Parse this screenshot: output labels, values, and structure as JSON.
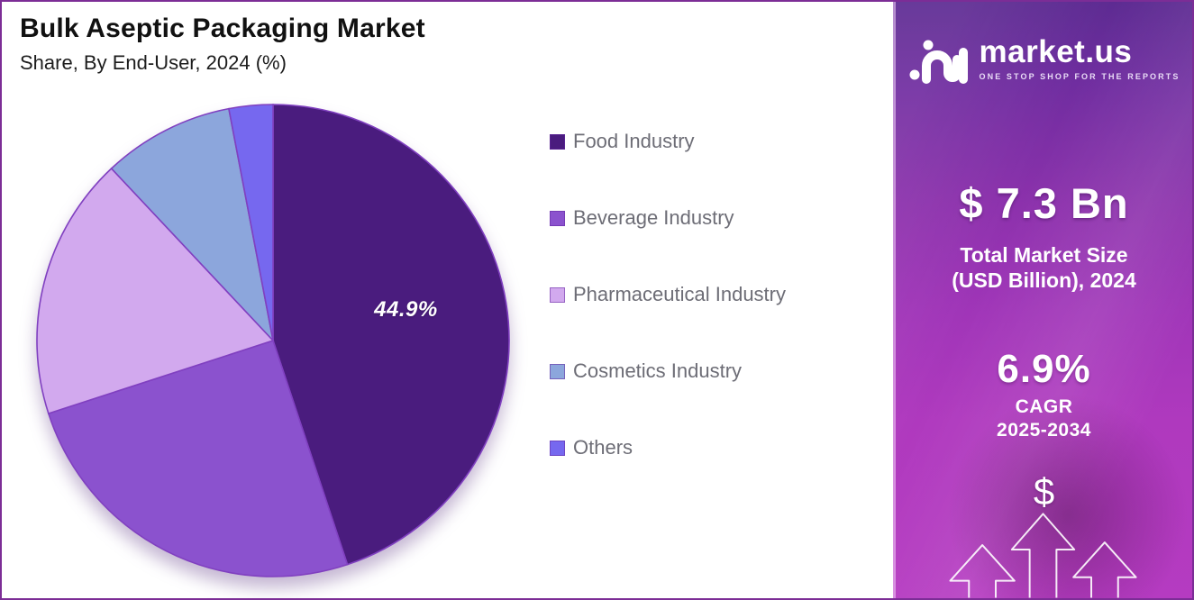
{
  "header": {
    "title": "Bulk Aseptic Packaging Market",
    "subtitle": "Share, By End-User, 2024 (%)"
  },
  "chart_data": {
    "type": "pie",
    "title": "Bulk Aseptic Packaging Market",
    "subtitle": "Share, By End-User, 2024 (%)",
    "categories": [
      "Food Industry",
      "Beverage Industry",
      "Pharmaceutical Industry",
      "Cosmetics Industry",
      "Others"
    ],
    "values": [
      44.9,
      25.1,
      18.0,
      9.0,
      3.0
    ],
    "label_text": "44.9%",
    "labeled_slice": "Food Industry",
    "colors": [
      "#4a1c7e",
      "#8b52ce",
      "#d2a9ee",
      "#8ca6dc",
      "#7668ef"
    ],
    "start_angle_deg": 0,
    "direction": "clockwise",
    "legend_position": "right"
  },
  "sidebar": {
    "logo_text": "market.us",
    "logo_tagline": "ONE STOP SHOP FOR THE REPORTS",
    "market_size_value": "$ 7.3 Bn",
    "market_size_label_line1": "Total Market Size",
    "market_size_label_line2": "(USD Billion), 2024",
    "cagr_value": "6.9%",
    "cagr_label": "CAGR",
    "cagr_period": "2025-2034",
    "dollar_symbol": "$"
  },
  "colors": {
    "frame_border": "#7c2d96",
    "slice_stroke": "#8040c0",
    "legend_text": "#6d6d76",
    "sidebar_top": "#5d2b92",
    "sidebar_bottom": "#b53bc1",
    "label_color": "#ffffff"
  }
}
